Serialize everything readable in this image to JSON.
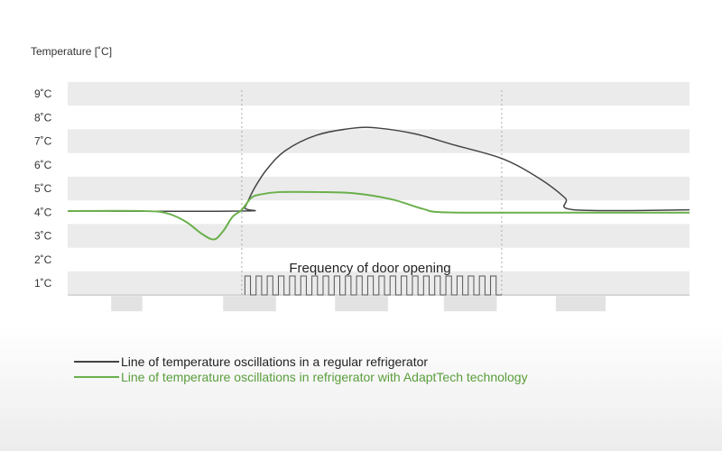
{
  "chart_data": {
    "type": "line",
    "title": "",
    "ylabel": "Temperature [˚C]",
    "xlabel": "",
    "ylim": [
      0.5,
      9.5
    ],
    "xlim": [
      0,
      100
    ],
    "yticks": [
      {
        "value": 9,
        "label": "9˚C"
      },
      {
        "value": 8,
        "label": "8˚C"
      },
      {
        "value": 7,
        "label": "7˚C"
      },
      {
        "value": 6,
        "label": "6˚C"
      },
      {
        "value": 5,
        "label": "5˚C"
      },
      {
        "value": 4,
        "label": "4˚C"
      },
      {
        "value": 3,
        "label": "3˚C"
      },
      {
        "value": 2,
        "label": "2˚C"
      },
      {
        "value": 1,
        "label": "1˚C"
      }
    ],
    "grid": "alternating horizontal bands",
    "legend_position": "bottom-left",
    "annotation": "Frequency of door opening",
    "series": [
      {
        "name": "Line of temperature oscillations in a regular refrigerator",
        "color": "#444444",
        "points": [
          [
            0,
            4.05
          ],
          [
            28,
            4.05
          ],
          [
            28.5,
            4.2
          ],
          [
            30,
            5.0
          ],
          [
            32,
            5.8
          ],
          [
            35,
            6.6
          ],
          [
            40,
            7.25
          ],
          [
            46,
            7.55
          ],
          [
            50,
            7.55
          ],
          [
            56,
            7.3
          ],
          [
            62,
            6.85
          ],
          [
            70,
            6.25
          ],
          [
            76,
            5.4
          ],
          [
            80,
            4.6
          ],
          [
            81.5,
            4.1
          ],
          [
            100,
            4.1
          ]
        ]
      },
      {
        "name": "Line of temperature oscillations in refrigerator with AdaptTech technology",
        "color": "#6ab04c",
        "points": [
          [
            0,
            4.05
          ],
          [
            12,
            4.05
          ],
          [
            16,
            3.95
          ],
          [
            19,
            3.6
          ],
          [
            21.5,
            3.1
          ],
          [
            23.5,
            2.85
          ],
          [
            25,
            3.2
          ],
          [
            26.5,
            3.8
          ],
          [
            28,
            4.1
          ],
          [
            29.5,
            4.6
          ],
          [
            31,
            4.75
          ],
          [
            34,
            4.85
          ],
          [
            40,
            4.85
          ],
          [
            46,
            4.8
          ],
          [
            52,
            4.55
          ],
          [
            57,
            4.15
          ],
          [
            60,
            4.0
          ],
          [
            70,
            3.98
          ],
          [
            100,
            3.98
          ]
        ]
      }
    ],
    "door_opening": {
      "start": 28.5,
      "end": 69.8,
      "cycles": 23
    },
    "dashed_markers_x": [
      28,
      69.8
    ],
    "x_band_blocks": [
      {
        "start": 7,
        "end": 12
      },
      {
        "start": 25,
        "end": 33.5
      },
      {
        "start": 43,
        "end": 51.5
      },
      {
        "start": 60.5,
        "end": 69
      },
      {
        "start": 78.5,
        "end": 86.5
      }
    ]
  }
}
